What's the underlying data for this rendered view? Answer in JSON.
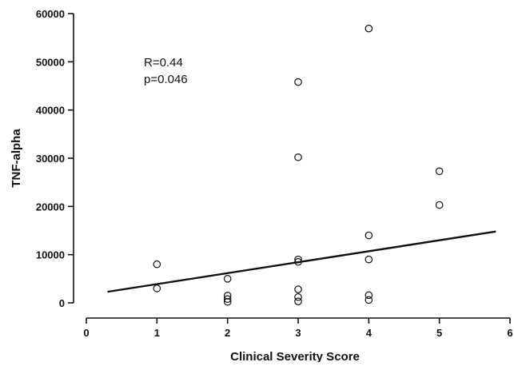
{
  "chart_data": {
    "type": "scatter",
    "title": "",
    "xlabel": "Clinical Severity Score",
    "ylabel": "TNF-alpha",
    "xlim": [
      0,
      6
    ],
    "ylim": [
      0,
      60000
    ],
    "x_ticks": [
      "0",
      "1",
      "2",
      "3",
      "4",
      "5",
      "6"
    ],
    "y_ticks": [
      "0",
      "10000",
      "20000",
      "30000",
      "40000",
      "50000",
      "60000"
    ],
    "grid": false,
    "annotations": [
      "R=0.44",
      "p=0.046"
    ],
    "points": [
      {
        "x": 1,
        "y": 8000
      },
      {
        "x": 1,
        "y": 3000
      },
      {
        "x": 2,
        "y": 5000
      },
      {
        "x": 2,
        "y": 1500
      },
      {
        "x": 2,
        "y": 800
      },
      {
        "x": 2,
        "y": 200
      },
      {
        "x": 3,
        "y": 45800
      },
      {
        "x": 3,
        "y": 30200
      },
      {
        "x": 3,
        "y": 9000
      },
      {
        "x": 3,
        "y": 8500
      },
      {
        "x": 3,
        "y": 2800
      },
      {
        "x": 3,
        "y": 1200
      },
      {
        "x": 3,
        "y": 300
      },
      {
        "x": 4,
        "y": 56900
      },
      {
        "x": 4,
        "y": 14000
      },
      {
        "x": 4,
        "y": 9000
      },
      {
        "x": 4,
        "y": 1600
      },
      {
        "x": 4,
        "y": 600
      },
      {
        "x": 5,
        "y": 27300
      },
      {
        "x": 5,
        "y": 20300
      }
    ],
    "fit_line": {
      "x": [
        0.3,
        5.8
      ],
      "y": [
        2300,
        14800
      ]
    }
  }
}
